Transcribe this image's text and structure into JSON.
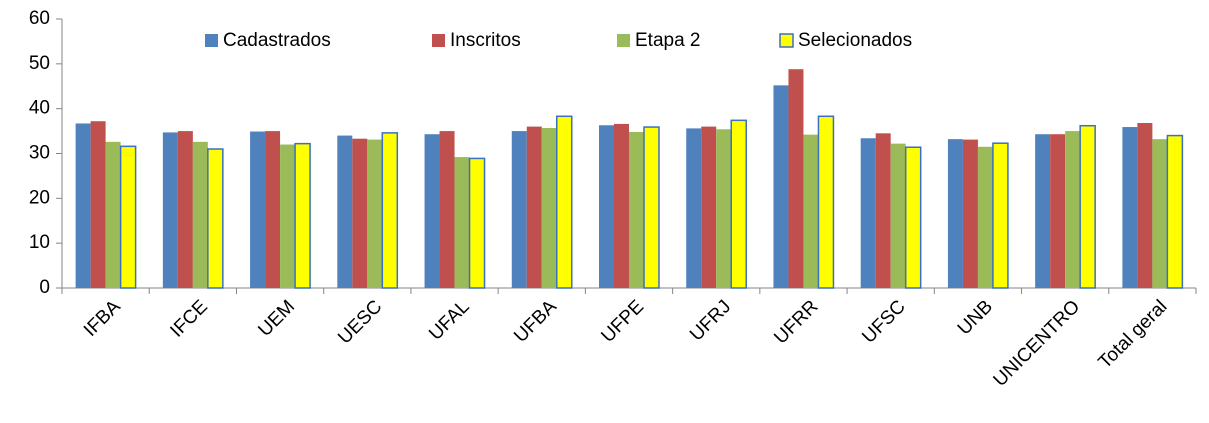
{
  "chart_data": {
    "type": "bar",
    "categories": [
      "IFBA",
      "IFCE",
      "UEM",
      "UESC",
      "UFAL",
      "UFBA",
      "UFPE",
      "UFRJ",
      "UFRR",
      "UFSC",
      "UNB",
      "UNICENTRO",
      "Total geral"
    ],
    "series": [
      {
        "name": "Cadastrados",
        "color": "#4f81bd",
        "values": [
          36.7,
          34.7,
          34.9,
          34.0,
          34.3,
          35.0,
          36.3,
          35.6,
          45.2,
          33.4,
          33.2,
          34.3,
          35.9
        ]
      },
      {
        "name": "Inscritos",
        "color": "#c0504d",
        "values": [
          37.2,
          35.0,
          35.0,
          33.3,
          35.0,
          36.0,
          36.6,
          36.0,
          48.8,
          34.5,
          33.1,
          34.3,
          36.8
        ]
      },
      {
        "name": "Etapa 2",
        "color": "#9bbb59",
        "values": [
          32.6,
          32.6,
          32.0,
          33.1,
          29.2,
          35.7,
          34.8,
          35.4,
          34.2,
          32.2,
          31.5,
          35.0,
          33.2
        ]
      },
      {
        "name": "Selecionados",
        "color": "#ffff00",
        "edgecolor": "#3a6fc4",
        "values": [
          31.6,
          31.0,
          32.2,
          34.6,
          28.9,
          38.3,
          35.9,
          37.4,
          38.3,
          31.4,
          32.3,
          36.2,
          34.0
        ]
      }
    ],
    "ylim": [
      0,
      60
    ],
    "yticks": [
      0,
      10,
      20,
      30,
      40,
      50,
      60
    ],
    "grid": false,
    "legend": "top"
  }
}
